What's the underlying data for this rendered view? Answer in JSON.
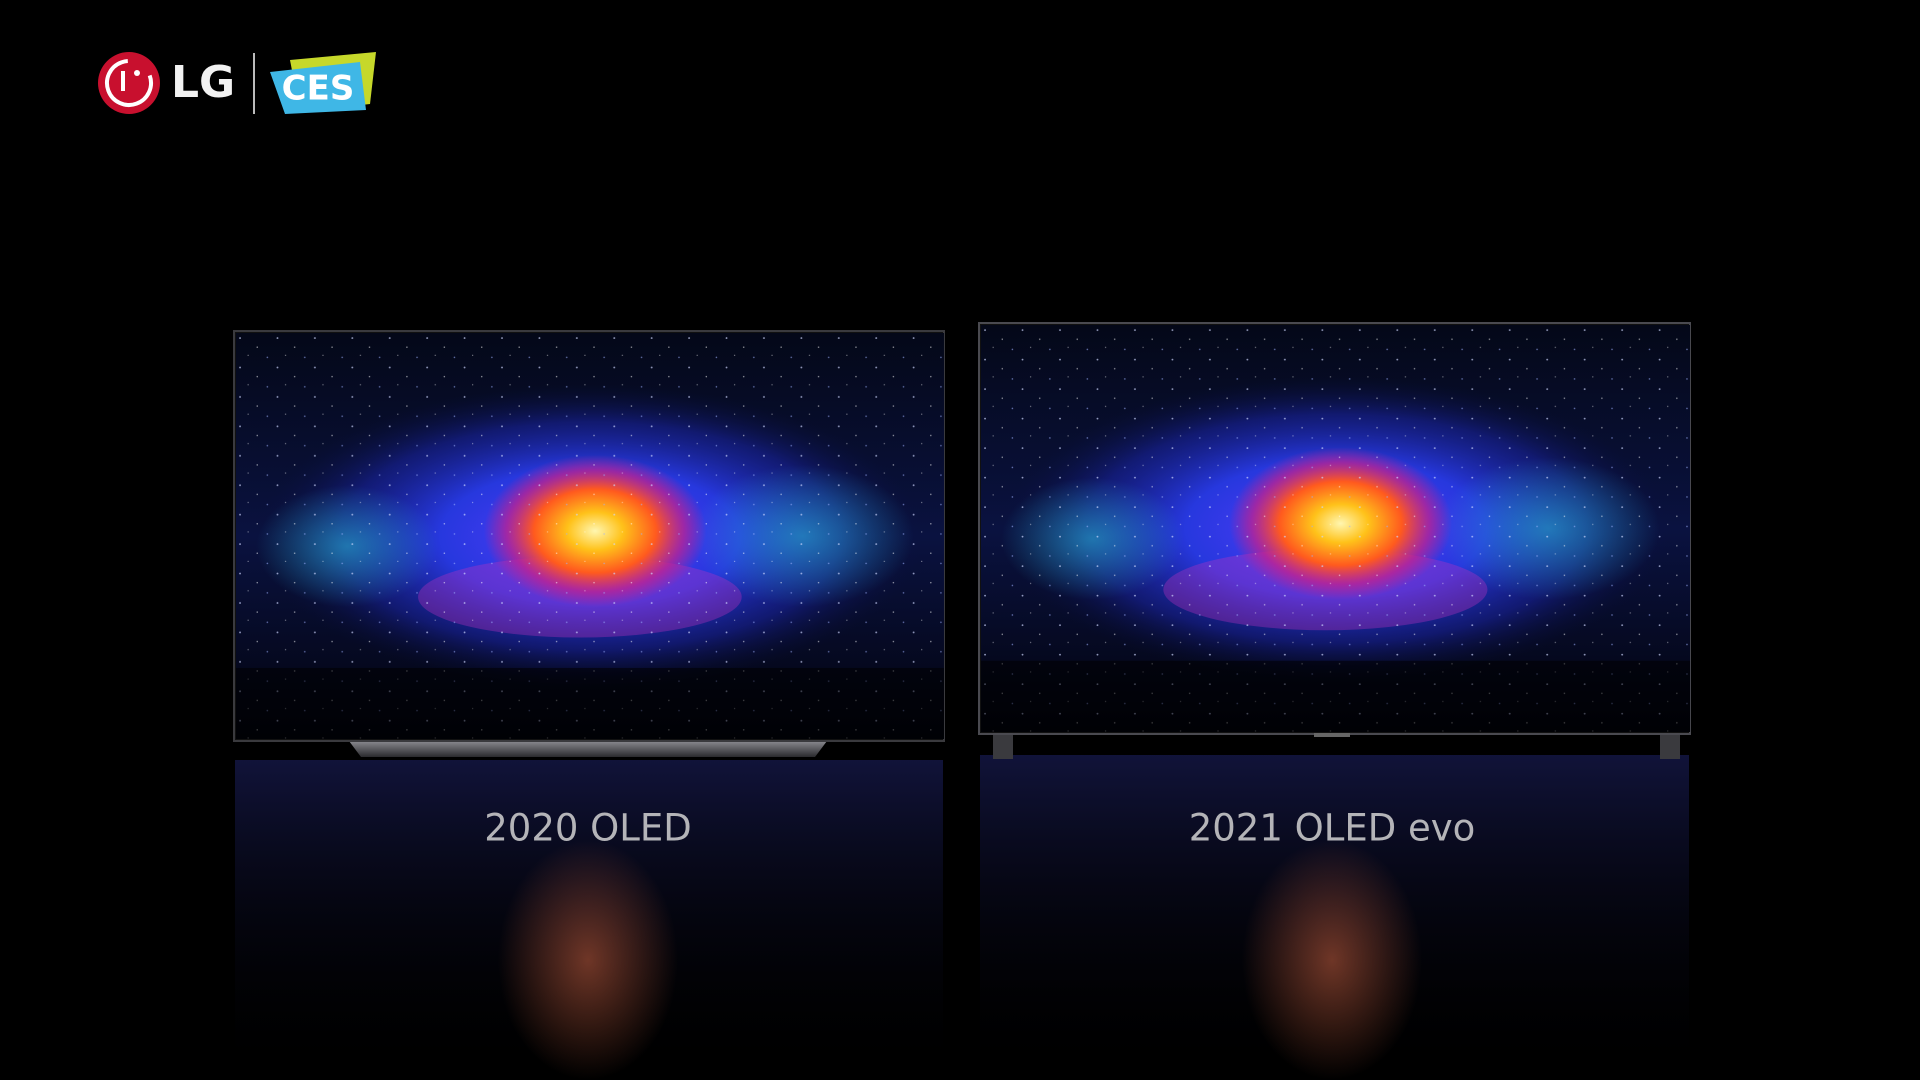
{
  "logo": {
    "brand": "LG",
    "event": "CES"
  },
  "screens": [
    {
      "label": "2020 OLED"
    },
    {
      "label": "2021 OLED evo"
    }
  ]
}
